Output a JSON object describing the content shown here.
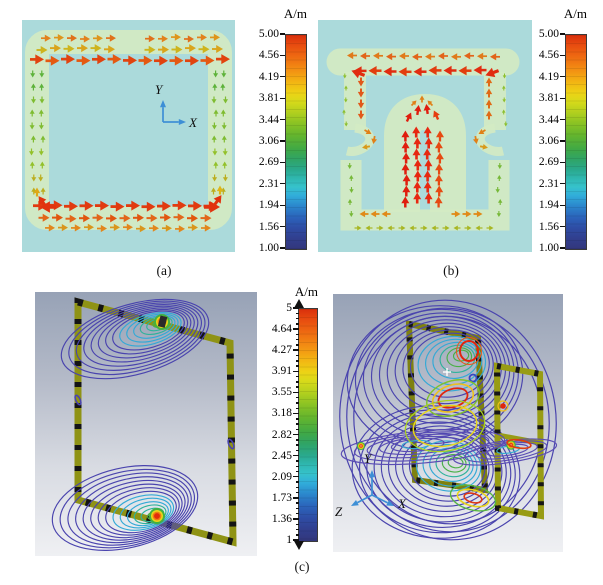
{
  "figure": {
    "captions": {
      "a": "(a)",
      "b": "(b)",
      "c": "(c)"
    }
  },
  "colorbars": {
    "ab": {
      "unit": "A/m",
      "ticks": [
        "5.00",
        "4.56",
        "4.19",
        "3.81",
        "3.44",
        "3.06",
        "2.69",
        "2.31",
        "1.94",
        "1.56",
        "1.00"
      ]
    },
    "c": {
      "unit": "A/m",
      "ticks": [
        "5",
        "4.64",
        "4.27",
        "3.91",
        "3.55",
        "3.18",
        "2.82",
        "2.45",
        "2.09",
        "1.73",
        "1.36",
        "1"
      ]
    }
  },
  "axes": {
    "panel_a": {
      "x": "X",
      "y": "Y"
    },
    "panel_c": {
      "x": "X",
      "y": "Y",
      "z": "Z"
    }
  },
  "colors": {
    "panel_ab_background": "#abdadb",
    "patch_highlight": "#d2eac3",
    "loop_antenna": "#8f9315",
    "field_line_blue": "#4a44ae",
    "scale_max_red": "#d92f0c",
    "scale_min_navy": "#32377c",
    "axis_arrow_blue": "#3d8fd6"
  }
}
